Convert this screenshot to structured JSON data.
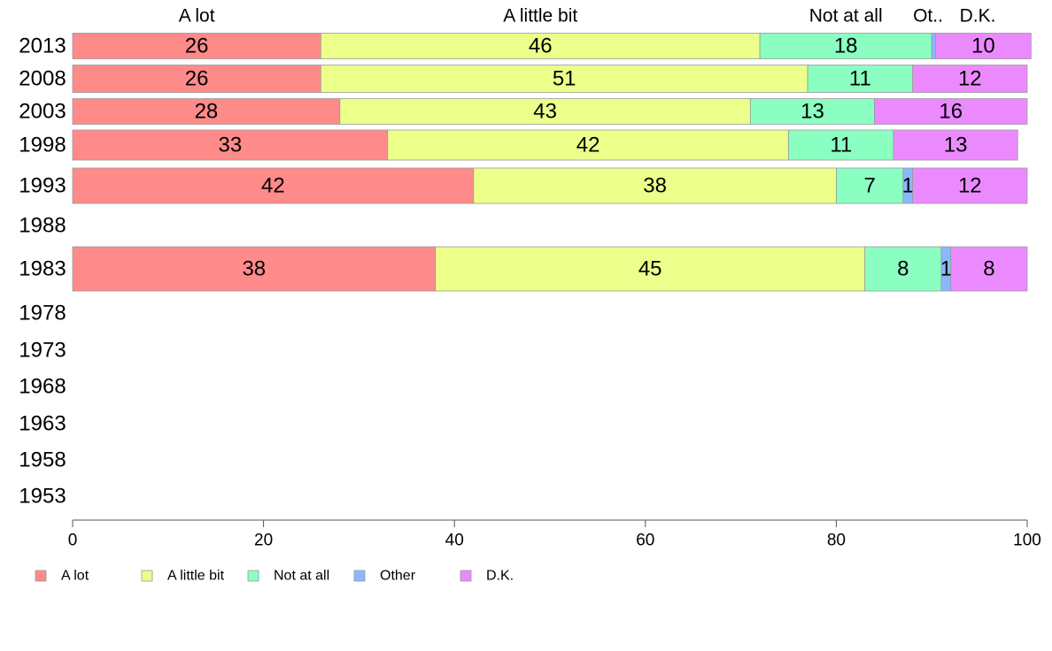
{
  "chart_data": {
    "type": "bar",
    "orientation": "horizontal",
    "stacked": true,
    "categories": [
      "2013",
      "2008",
      "2003",
      "1998",
      "1993",
      "1988",
      "1983",
      "1978",
      "1973",
      "1968",
      "1963",
      "1958",
      "1953"
    ],
    "series": [
      {
        "name": "A lot",
        "color": "#ff8a8a",
        "values": [
          26,
          26,
          28,
          33,
          42,
          null,
          38,
          null,
          null,
          null,
          null,
          null,
          null
        ]
      },
      {
        "name": "A little bit",
        "color": "#ebff8a",
        "values": [
          46,
          51,
          43,
          42,
          38,
          null,
          45,
          null,
          null,
          null,
          null,
          null,
          null
        ]
      },
      {
        "name": "Not at all",
        "color": "#8affc1",
        "values": [
          18,
          11,
          13,
          11,
          7,
          null,
          8,
          null,
          null,
          null,
          null,
          null,
          null
        ]
      },
      {
        "name": "Other",
        "color": "#8ab8ff",
        "values": [
          0.4,
          0,
          0,
          0,
          1,
          null,
          1,
          null,
          null,
          null,
          null,
          null,
          null
        ]
      },
      {
        "name": "D.K.",
        "color": "#eb8aff",
        "values": [
          10,
          12,
          16,
          13,
          12,
          null,
          8,
          null,
          null,
          null,
          null,
          null,
          null
        ]
      }
    ],
    "column_headers": [
      "A lot",
      "A little bit",
      "Not at all",
      "Ot..",
      "D.K."
    ],
    "xlim": [
      0,
      100
    ],
    "xticks": [
      0,
      20,
      40,
      60,
      80,
      100
    ],
    "grid": false,
    "legend_position": "bottom"
  }
}
